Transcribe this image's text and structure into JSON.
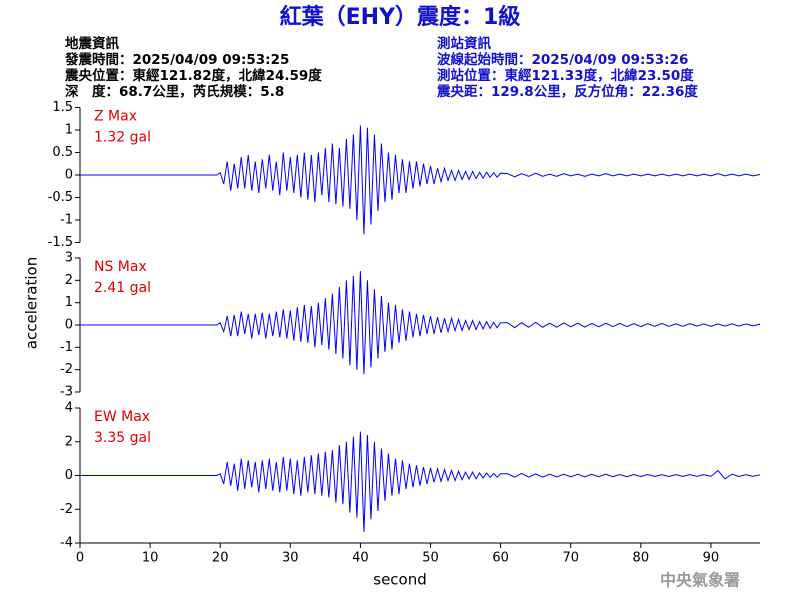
{
  "header": {
    "title": "紅葉（EHY）震度：1級",
    "quake": [
      "地震資訊",
      "發震時間：2025/04/09 09:53:25",
      "震央位置：東經121.82度，北緯24.59度",
      "深　度：68.7公里，芮氏規模：5.8"
    ],
    "station": [
      "測站資訊",
      "波線起始時間：2025/04/09 09:53:26",
      "測站位置：東經121.33度，北緯23.50度",
      "震央距：129.8公里，反方位角：22.36度"
    ]
  },
  "footer": "中央氣象署",
  "chart_data": [
    {
      "type": "line",
      "label": "Z Max",
      "max_label": "1.32 gal",
      "color": "#0000ff",
      "xlim": [
        0,
        97
      ],
      "ylim": [
        -1.5,
        1.5
      ],
      "yticks": [
        -1.5,
        -1,
        -0.5,
        0,
        0.5,
        1,
        1.5
      ],
      "x": [
        0,
        19.5,
        20,
        20.5,
        21,
        21.5,
        22,
        22.5,
        23,
        23.5,
        24,
        24.5,
        25,
        25.5,
        26,
        26.5,
        27,
        27.5,
        28,
        28.5,
        29,
        29.5,
        30,
        30.5,
        31,
        31.5,
        32,
        32.5,
        33,
        33.5,
        34,
        34.5,
        35,
        35.5,
        36,
        36.5,
        37,
        37.5,
        38,
        38.5,
        39,
        39.5,
        40,
        40.5,
        41,
        41.5,
        42,
        42.5,
        43,
        43.5,
        44,
        44.5,
        45,
        45.5,
        46,
        46.5,
        47,
        47.5,
        48,
        48.5,
        49,
        49.5,
        50,
        50.5,
        51,
        51.5,
        52,
        52.5,
        53,
        53.5,
        54,
        54.5,
        55,
        55.5,
        56,
        56.5,
        57,
        57.5,
        58,
        58.5,
        59,
        59.5,
        60,
        61,
        62,
        63,
        64,
        65,
        66,
        67,
        68,
        69,
        70,
        71,
        72,
        73,
        74,
        75,
        76,
        77,
        78,
        79,
        80,
        81,
        82,
        83,
        84,
        85,
        86,
        87,
        88,
        89,
        90,
        91,
        92,
        93,
        94,
        95,
        96,
        97
      ],
      "values": [
        0,
        0,
        0.05,
        -0.2,
        0.3,
        -0.35,
        0.25,
        -0.3,
        0.4,
        -0.3,
        0.45,
        -0.35,
        0.3,
        -0.4,
        0.35,
        -0.3,
        0.45,
        -0.35,
        0.3,
        -0.45,
        0.5,
        -0.35,
        0.4,
        -0.4,
        0.45,
        -0.5,
        0.5,
        -0.55,
        0.45,
        -0.6,
        0.5,
        -0.45,
        0.6,
        -0.6,
        0.7,
        -0.65,
        0.6,
        -0.7,
        0.8,
        -0.75,
        0.9,
        -1.0,
        1.1,
        -1.32,
        1.05,
        -1.1,
        0.9,
        -0.8,
        0.7,
        -0.6,
        0.5,
        -0.55,
        0.45,
        -0.4,
        0.35,
        -0.4,
        0.3,
        -0.3,
        0.3,
        -0.25,
        0.25,
        -0.2,
        0.2,
        -0.2,
        0.15,
        -0.15,
        0.15,
        -0.12,
        0.1,
        -0.12,
        0.1,
        -0.1,
        0.08,
        -0.1,
        0.08,
        -0.08,
        0.06,
        -0.07,
        0.06,
        -0.05,
        0.05,
        -0.05,
        0.04,
        0.03,
        -0.04,
        0.03,
        -0.03,
        0.04,
        -0.03,
        0.02,
        -0.03,
        0.03,
        -0.02,
        0.02,
        -0.03,
        0.02,
        -0.02,
        0.03,
        -0.02,
        0.02,
        -0.02,
        0.02,
        -0.02,
        0.02,
        -0.02,
        0.02,
        -0.02,
        0.02,
        -0.02,
        0.02,
        -0.02,
        0.02,
        -0.02,
        0.03,
        -0.02,
        0.02,
        -0.02,
        0.02,
        -0.02,
        0.01
      ]
    },
    {
      "type": "line",
      "label": "NS Max",
      "max_label": "2.41 gal",
      "color": "#0000ff",
      "ylabel": "acceleration",
      "xlim": [
        0,
        97
      ],
      "ylim": [
        -3,
        3
      ],
      "yticks": [
        -3,
        -2,
        -1,
        0,
        1,
        2,
        3
      ],
      "x": [
        0,
        19.5,
        20,
        20.5,
        21,
        21.5,
        22,
        22.5,
        23,
        23.5,
        24,
        24.5,
        25,
        25.5,
        26,
        26.5,
        27,
        27.5,
        28,
        28.5,
        29,
        29.5,
        30,
        30.5,
        31,
        31.5,
        32,
        32.5,
        33,
        33.5,
        34,
        34.5,
        35,
        35.5,
        36,
        36.5,
        37,
        37.5,
        38,
        38.5,
        39,
        39.5,
        40,
        40.5,
        41,
        41.5,
        42,
        42.5,
        43,
        43.5,
        44,
        44.5,
        45,
        45.5,
        46,
        46.5,
        47,
        47.5,
        48,
        48.5,
        49,
        49.5,
        50,
        50.5,
        51,
        51.5,
        52,
        52.5,
        53,
        53.5,
        54,
        54.5,
        55,
        55.5,
        56,
        56.5,
        57,
        57.5,
        58,
        58.5,
        59,
        59.5,
        60,
        61,
        62,
        63,
        64,
        65,
        66,
        67,
        68,
        69,
        70,
        71,
        72,
        73,
        74,
        75,
        76,
        77,
        78,
        79,
        80,
        81,
        82,
        83,
        84,
        85,
        86,
        87,
        88,
        89,
        90,
        91,
        92,
        93,
        94,
        95,
        96,
        97
      ],
      "values": [
        0,
        0,
        0.1,
        -0.3,
        0.4,
        -0.5,
        0.45,
        -0.5,
        0.6,
        -0.4,
        0.5,
        -0.6,
        0.5,
        -0.45,
        0.55,
        -0.6,
        0.5,
        -0.5,
        0.6,
        -0.55,
        0.7,
        -0.6,
        0.65,
        -0.7,
        0.8,
        -0.75,
        0.9,
        -0.8,
        0.85,
        -1.0,
        1.0,
        -0.9,
        1.2,
        -1.1,
        1.4,
        -1.3,
        1.7,
        -1.5,
        2.0,
        -1.8,
        2.2,
        -2.0,
        2.41,
        -2.2,
        2.0,
        -1.9,
        1.6,
        -1.5,
        1.3,
        -1.2,
        1.0,
        -1.1,
        0.9,
        -0.8,
        0.7,
        -0.7,
        0.6,
        -0.55,
        0.5,
        -0.5,
        0.45,
        -0.4,
        0.4,
        -0.4,
        0.35,
        -0.35,
        0.3,
        -0.3,
        0.3,
        -0.25,
        0.25,
        -0.25,
        0.2,
        -0.2,
        0.2,
        -0.2,
        0.15,
        -0.18,
        0.15,
        -0.15,
        0.12,
        -0.12,
        0.1,
        0.1,
        -0.12,
        0.1,
        -0.1,
        0.12,
        -0.1,
        0.08,
        -0.1,
        0.09,
        -0.08,
        0.08,
        -0.09,
        0.07,
        -0.08,
        0.08,
        -0.07,
        0.07,
        -0.07,
        0.06,
        -0.07,
        0.06,
        -0.06,
        0.07,
        -0.06,
        0.05,
        -0.06,
        0.06,
        -0.05,
        0.05,
        -0.06,
        0.05,
        -0.05,
        0.05,
        -0.05,
        0.05,
        -0.04,
        0.04
      ]
    },
    {
      "type": "line",
      "label": "EW Max",
      "max_label": "3.35 gal",
      "color": "#0000ff",
      "xlabel": "second",
      "xlim": [
        0,
        97
      ],
      "xticks": [
        0,
        10,
        20,
        30,
        40,
        50,
        60,
        70,
        80,
        90
      ],
      "ylim": [
        -4,
        4
      ],
      "yticks": [
        -4,
        -2,
        0,
        2,
        4
      ],
      "x": [
        0,
        19.5,
        20,
        20.5,
        21,
        21.5,
        22,
        22.5,
        23,
        23.5,
        24,
        24.5,
        25,
        25.5,
        26,
        26.5,
        27,
        27.5,
        28,
        28.5,
        29,
        29.5,
        30,
        30.5,
        31,
        31.5,
        32,
        32.5,
        33,
        33.5,
        34,
        34.5,
        35,
        35.5,
        36,
        36.5,
        37,
        37.5,
        38,
        38.5,
        39,
        39.5,
        40,
        40.5,
        41,
        41.5,
        42,
        42.5,
        43,
        43.5,
        44,
        44.5,
        45,
        45.5,
        46,
        46.5,
        47,
        47.5,
        48,
        48.5,
        49,
        49.5,
        50,
        50.5,
        51,
        51.5,
        52,
        52.5,
        53,
        53.5,
        54,
        54.5,
        55,
        55.5,
        56,
        56.5,
        57,
        57.5,
        58,
        58.5,
        59,
        59.5,
        60,
        61,
        62,
        63,
        64,
        65,
        66,
        67,
        68,
        69,
        70,
        71,
        72,
        73,
        74,
        75,
        76,
        77,
        78,
        79,
        80,
        81,
        82,
        83,
        84,
        85,
        86,
        87,
        88,
        89,
        90,
        91,
        92,
        93,
        94,
        95,
        96,
        97
      ],
      "values": [
        0,
        0,
        0.1,
        -0.5,
        0.8,
        -0.6,
        0.7,
        -0.9,
        1.0,
        -0.8,
        0.9,
        -0.7,
        0.8,
        -1.0,
        0.9,
        -0.8,
        1.0,
        -0.9,
        0.8,
        -1.0,
        1.1,
        -0.9,
        1.0,
        -1.1,
        0.9,
        -1.2,
        1.1,
        -1.0,
        1.2,
        -1.1,
        1.3,
        -1.2,
        1.4,
        -1.3,
        1.5,
        -1.6,
        1.8,
        -1.7,
        2.0,
        -2.2,
        2.3,
        -2.5,
        2.6,
        -3.35,
        2.4,
        -2.6,
        2.0,
        -2.1,
        1.6,
        -1.5,
        1.3,
        -1.2,
        1.0,
        -1.1,
        0.9,
        -0.8,
        0.7,
        -0.7,
        0.6,
        -0.6,
        0.5,
        -0.5,
        0.45,
        -0.4,
        0.4,
        -0.35,
        0.35,
        -0.3,
        0.3,
        -0.3,
        0.25,
        -0.25,
        0.2,
        -0.2,
        0.2,
        -0.2,
        0.15,
        -0.15,
        0.15,
        -0.12,
        0.12,
        -0.1,
        0.1,
        0.1,
        -0.1,
        0.12,
        -0.1,
        0.09,
        -0.1,
        0.08,
        -0.09,
        0.08,
        -0.08,
        0.07,
        -0.08,
        0.07,
        -0.07,
        0.08,
        -0.07,
        0.06,
        -0.07,
        0.06,
        -0.06,
        0.06,
        -0.06,
        0.05,
        -0.06,
        0.05,
        -0.05,
        0.05,
        -0.05,
        0.05,
        -0.05,
        0.3,
        -0.2,
        0.08,
        -0.06,
        0.05,
        -0.05,
        0.04
      ]
    }
  ]
}
